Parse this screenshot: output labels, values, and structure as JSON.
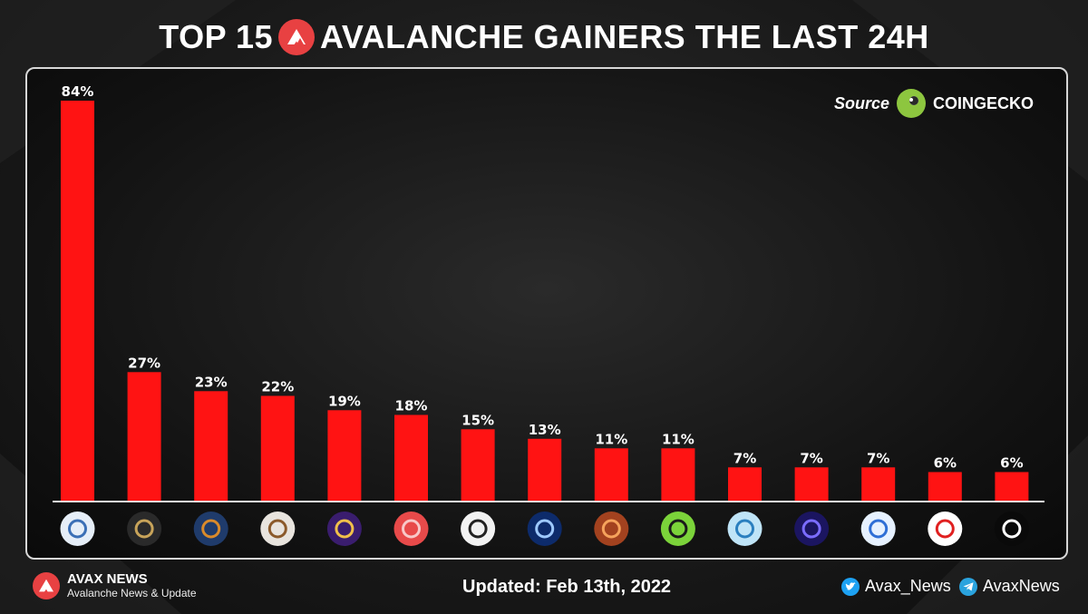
{
  "header": {
    "title_left": "TOP 15",
    "title_right": "AVALANCHE GAINERS THE LAST 24H"
  },
  "source": {
    "label": "Source",
    "name": "COINGECKO"
  },
  "chart_data": {
    "type": "bar",
    "title": "TOP 15 AVALANCHE GAINERS THE LAST 24H",
    "xlabel": "",
    "ylabel": "",
    "ylim": [
      0,
      84
    ],
    "grid": false,
    "values": [
      84,
      27,
      23,
      22,
      19,
      18,
      15,
      13,
      11,
      11,
      7,
      7,
      7,
      6,
      6
    ],
    "labels": [
      "84%",
      "27%",
      "23%",
      "22%",
      "19%",
      "18%",
      "15%",
      "13%",
      "11%",
      "11%",
      "7%",
      "7%",
      "7%",
      "6%",
      "6%"
    ],
    "icons": [
      {
        "name": "mountain-token-icon",
        "bg": "#e6eef8",
        "fg": "#3b6fb6"
      },
      {
        "name": "ship-token-icon",
        "bg": "#2a2a2a",
        "fg": "#c8a45a"
      },
      {
        "name": "tavern-token-icon",
        "bg": "#1f3b6b",
        "fg": "#d98a2b"
      },
      {
        "name": "house-token-icon",
        "bg": "#e8e4de",
        "fg": "#8b5a2b"
      },
      {
        "name": "astronaut-token-icon",
        "bg": "#3a1d6e",
        "fg": "#f0c04a"
      },
      {
        "name": "cube-token-icon",
        "bg": "#e84a4a",
        "fg": "#f8c8c8"
      },
      {
        "name": "anyprinter-token-icon",
        "bg": "#f2f2f2",
        "fg": "#222222"
      },
      {
        "name": "galaxy-token-icon",
        "bg": "#0d2b6b",
        "fg": "#9ec9ff"
      },
      {
        "name": "sunset-token-icon",
        "bg": "#a3421f",
        "fg": "#f6a35c"
      },
      {
        "name": "s-token-icon",
        "bg": "#7bd33a",
        "fg": "#1a1a1a"
      },
      {
        "name": "genie-token-icon",
        "bg": "#bfe4f7",
        "fg": "#2a7fbf"
      },
      {
        "name": "ring-token-icon",
        "bg": "#1b1560",
        "fg": "#7b6cff"
      },
      {
        "name": "circle-token-icon",
        "bg": "#e6f1ff",
        "fg": "#2f6fd6"
      },
      {
        "name": "arrow-token-icon",
        "bg": "#ffffff",
        "fg": "#e02020"
      },
      {
        "name": "lines-token-icon",
        "bg": "#0a0a0a",
        "fg": "#ffffff"
      }
    ],
    "bar_color": "#ff1313"
  },
  "footer": {
    "brand_name": "AVAX NEWS",
    "brand_tagline": "Avalanche News & Update",
    "updated": "Updated: Feb 13th, 2022",
    "twitter": "Avax_News",
    "telegram": "AvaxNews"
  }
}
